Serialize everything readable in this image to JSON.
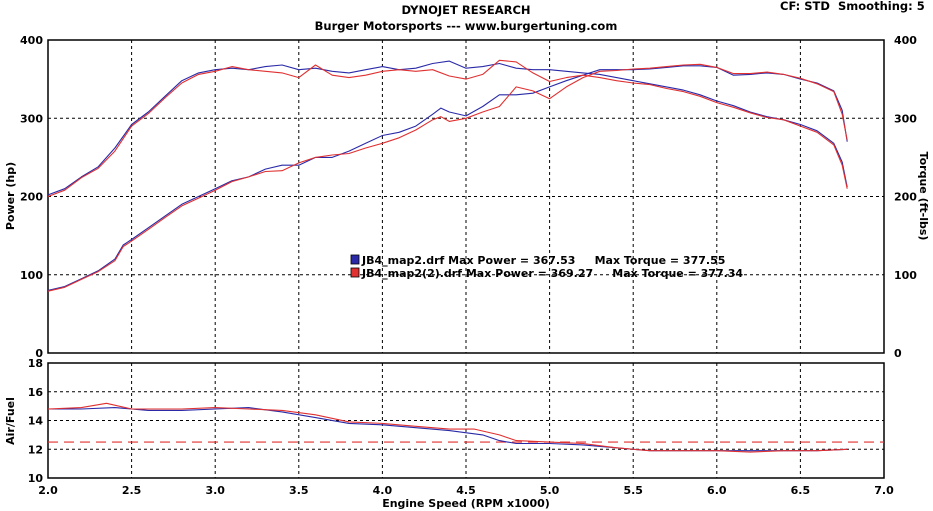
{
  "header": {
    "title": "DYNOJET RESEARCH",
    "subtitle": "Burger Motorsports --- www.burgertuning.com",
    "cf_label": "CF: STD",
    "smoothing_label": "Smoothing: 5"
  },
  "colors": {
    "run1": "#2a2aa8",
    "run2": "#e03030",
    "grid": "#000000",
    "afr_ref": "#e03030"
  },
  "legend": [
    {
      "text": "JB4_map2.drf Max Power = 367.53     Max Torque = 377.55",
      "color": "#2a2aa8"
    },
    {
      "text": "JB4_map2(2).drf Max Power = 369.27     Max Torque = 377.34",
      "color": "#e03030"
    }
  ],
  "chart_data": [
    {
      "type": "line",
      "xlabel": "",
      "ylabel": "Power (hp)",
      "y2label": "Torque (ft-lbs)",
      "xlim": [
        2.0,
        7.0
      ],
      "ylim": [
        0,
        400
      ],
      "y2lim": [
        0,
        400
      ],
      "xticks": [
        "2.0",
        "2.5",
        "3.0",
        "3.5",
        "4.0",
        "4.5",
        "5.0",
        "5.5",
        "6.0",
        "6.5",
        "7.0"
      ],
      "yticks": [
        "0",
        "100",
        "200",
        "300",
        "400"
      ],
      "y2ticks": [
        "0",
        "100",
        "200",
        "300",
        "400"
      ],
      "grid": true,
      "series": [
        {
          "name": "JB4_map2.drf",
          "kind": "power",
          "color": "#2a2aa8",
          "x": [
            2.0,
            2.1,
            2.2,
            2.3,
            2.4,
            2.45,
            2.5,
            2.6,
            2.7,
            2.8,
            2.9,
            3.0,
            3.1,
            3.2,
            3.3,
            3.4,
            3.5,
            3.6,
            3.7,
            3.8,
            3.9,
            4.0,
            4.1,
            4.2,
            4.3,
            4.35,
            4.4,
            4.5,
            4.6,
            4.7,
            4.8,
            4.9,
            5.0,
            5.1,
            5.2,
            5.3,
            5.4,
            5.5,
            5.6,
            5.7,
            5.8,
            5.9,
            6.0,
            6.1,
            6.2,
            6.3,
            6.4,
            6.5,
            6.6,
            6.7,
            6.75,
            6.78
          ],
          "y": [
            80,
            85,
            95,
            105,
            120,
            138,
            145,
            160,
            175,
            190,
            200,
            210,
            220,
            225,
            235,
            240,
            240,
            250,
            250,
            258,
            268,
            278,
            282,
            290,
            305,
            313,
            308,
            303,
            315,
            330,
            330,
            332,
            340,
            348,
            355,
            362,
            362,
            362,
            363,
            365,
            367,
            367,
            365,
            355,
            356,
            358,
            356,
            350,
            345,
            335,
            310,
            270
          ]
        },
        {
          "name": "JB4_map2.drf",
          "kind": "torque",
          "color": "#2a2aa8",
          "x": [
            2.0,
            2.1,
            2.2,
            2.3,
            2.4,
            2.5,
            2.6,
            2.7,
            2.8,
            2.9,
            3.0,
            3.1,
            3.2,
            3.3,
            3.4,
            3.5,
            3.6,
            3.7,
            3.8,
            3.9,
            4.0,
            4.1,
            4.2,
            4.3,
            4.4,
            4.5,
            4.6,
            4.7,
            4.8,
            4.9,
            5.0,
            5.1,
            5.2,
            5.3,
            5.4,
            5.5,
            5.6,
            5.7,
            5.8,
            5.9,
            6.0,
            6.1,
            6.2,
            6.3,
            6.4,
            6.5,
            6.6,
            6.7,
            6.75,
            6.78
          ],
          "y": [
            202,
            210,
            225,
            238,
            262,
            292,
            308,
            328,
            348,
            358,
            362,
            364,
            362,
            366,
            368,
            362,
            364,
            360,
            358,
            362,
            366,
            362,
            364,
            370,
            373,
            364,
            366,
            370,
            364,
            362,
            362,
            360,
            358,
            356,
            352,
            348,
            344,
            340,
            336,
            330,
            322,
            316,
            308,
            302,
            298,
            292,
            284,
            268,
            244,
            212
          ]
        },
        {
          "name": "JB4_map2(2).drf",
          "kind": "power",
          "color": "#e03030",
          "x": [
            2.0,
            2.1,
            2.2,
            2.3,
            2.4,
            2.45,
            2.5,
            2.6,
            2.7,
            2.8,
            2.9,
            3.0,
            3.1,
            3.2,
            3.3,
            3.4,
            3.5,
            3.6,
            3.7,
            3.8,
            3.9,
            4.0,
            4.1,
            4.2,
            4.3,
            4.35,
            4.4,
            4.5,
            4.6,
            4.7,
            4.8,
            4.9,
            5.0,
            5.1,
            5.2,
            5.3,
            5.4,
            5.5,
            5.6,
            5.7,
            5.8,
            5.9,
            6.0,
            6.1,
            6.2,
            6.3,
            6.4,
            6.5,
            6.6,
            6.7,
            6.75,
            6.78
          ],
          "y": [
            79,
            84,
            94,
            104,
            118,
            136,
            143,
            158,
            173,
            188,
            198,
            208,
            219,
            225,
            232,
            233,
            243,
            250,
            253,
            255,
            262,
            268,
            275,
            285,
            298,
            302,
            296,
            300,
            308,
            315,
            340,
            335,
            325,
            340,
            352,
            360,
            361,
            363,
            364,
            366,
            368,
            369,
            365,
            357,
            357,
            359,
            356,
            351,
            344,
            334,
            305,
            272
          ]
        },
        {
          "name": "JB4_map2(2).drf",
          "kind": "torque",
          "color": "#e03030",
          "x": [
            2.0,
            2.1,
            2.2,
            2.3,
            2.4,
            2.5,
            2.6,
            2.7,
            2.8,
            2.9,
            3.0,
            3.1,
            3.2,
            3.3,
            3.4,
            3.5,
            3.6,
            3.7,
            3.8,
            3.9,
            4.0,
            4.1,
            4.2,
            4.3,
            4.4,
            4.5,
            4.6,
            4.7,
            4.8,
            4.9,
            5.0,
            5.1,
            5.2,
            5.3,
            5.4,
            5.5,
            5.6,
            5.7,
            5.8,
            5.9,
            6.0,
            6.1,
            6.2,
            6.3,
            6.4,
            6.5,
            6.6,
            6.7,
            6.75,
            6.78
          ],
          "y": [
            200,
            208,
            224,
            236,
            258,
            290,
            306,
            326,
            345,
            356,
            360,
            366,
            362,
            360,
            358,
            352,
            368,
            355,
            352,
            355,
            360,
            362,
            360,
            362,
            354,
            350,
            356,
            374,
            372,
            358,
            347,
            352,
            355,
            352,
            348,
            345,
            343,
            338,
            334,
            328,
            320,
            314,
            307,
            301,
            298,
            290,
            282,
            266,
            240,
            210
          ]
        }
      ]
    },
    {
      "type": "line",
      "xlabel": "Engine Speed (RPM x1000)",
      "ylabel": "Air/Fuel",
      "xlim": [
        2.0,
        7.0
      ],
      "ylim": [
        10,
        18
      ],
      "xticks": [
        "2.0",
        "2.5",
        "3.0",
        "3.5",
        "4.0",
        "4.5",
        "5.0",
        "5.5",
        "6.0",
        "6.5",
        "7.0"
      ],
      "yticks": [
        "10",
        "12",
        "14",
        "16",
        "18"
      ],
      "grid": true,
      "reference_line": 12.5,
      "series": [
        {
          "name": "JB4_map2.drf",
          "color": "#2a2aa8",
          "x": [
            2.0,
            2.2,
            2.4,
            2.6,
            2.8,
            3.0,
            3.2,
            3.4,
            3.6,
            3.8,
            4.0,
            4.2,
            4.4,
            4.6,
            4.7,
            4.8,
            5.0,
            5.2,
            5.4,
            5.6,
            5.8,
            6.0,
            6.2,
            6.4,
            6.6,
            6.78
          ],
          "y": [
            14.8,
            14.8,
            14.9,
            14.7,
            14.7,
            14.8,
            14.9,
            14.6,
            14.2,
            13.8,
            13.7,
            13.5,
            13.3,
            13.0,
            12.6,
            12.4,
            12.4,
            12.3,
            12.1,
            11.9,
            11.9,
            11.9,
            11.9,
            11.9,
            11.9,
            12.0
          ]
        },
        {
          "name": "JB4_map2(2).drf",
          "color": "#e03030",
          "x": [
            2.0,
            2.2,
            2.35,
            2.5,
            2.8,
            3.0,
            3.2,
            3.4,
            3.6,
            3.8,
            4.0,
            4.2,
            4.4,
            4.55,
            4.7,
            4.8,
            5.0,
            5.2,
            5.4,
            5.6,
            5.8,
            6.0,
            6.2,
            6.4,
            6.6,
            6.78
          ],
          "y": [
            14.8,
            14.9,
            15.2,
            14.8,
            14.8,
            14.9,
            14.8,
            14.7,
            14.4,
            13.9,
            13.8,
            13.6,
            13.4,
            13.4,
            13.0,
            12.6,
            12.5,
            12.4,
            12.1,
            11.9,
            11.9,
            11.9,
            11.8,
            11.9,
            11.9,
            12.0
          ]
        }
      ]
    }
  ]
}
